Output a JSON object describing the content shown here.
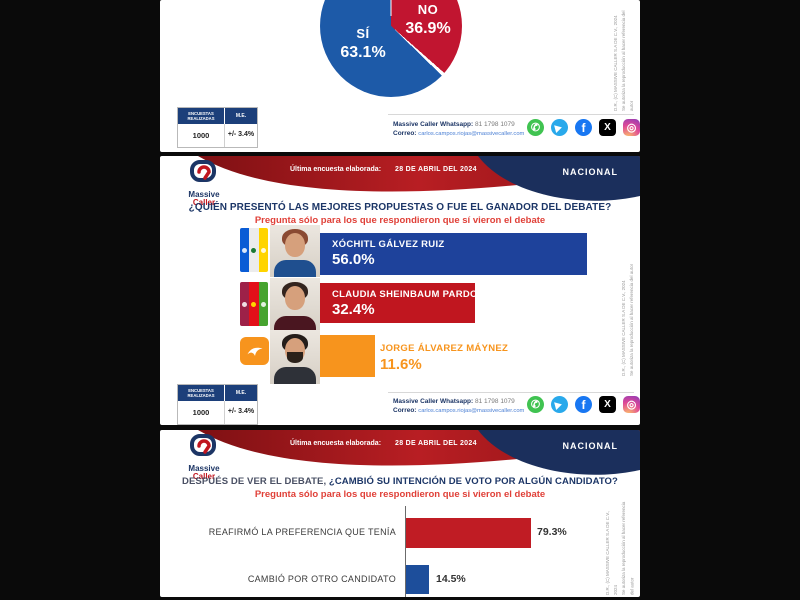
{
  "shared": {
    "brand": {
      "name_line1": "Massive",
      "name_line2": "Caller"
    },
    "banner": {
      "date_label": "Última encuesta elaborada:",
      "date": "28 DE ABRIL DEL 2024",
      "region": "NACIONAL"
    },
    "stats": {
      "col1_header": "ENCUESTAS REALIZADAS",
      "col2_header": "M.E.",
      "col1_value": "1000",
      "col2_value": "+/- 3.4%"
    },
    "contact": {
      "whatsapp_label": "Massive Caller Whatsapp:",
      "whatsapp_number": "81 1798 1079",
      "email_label": "Correo:",
      "email": "carlos.campos.riojas@massivecaller.com"
    },
    "social_icons": [
      "whatsapp-icon",
      "telegram-icon",
      "facebook-icon",
      "x-icon",
      "instagram-icon"
    ],
    "side_note_line1": "D.R., (C) MASSIVE CALLER S.A DE C.V., 2024",
    "side_note_line2": "Se autoriza la reproducción al hacer referencia del autor"
  },
  "slide1": {
    "pie_labels": {
      "si_label": "SÍ",
      "si_pct": "63.1%",
      "no_label": "NO",
      "no_pct": "36.9%"
    }
  },
  "slide2": {
    "question": "¿QUIÉN PRESENTÓ LAS MEJORES PROPUESTAS O FUE EL GANADOR DEL DEBATE?",
    "subtitle": "Pregunta sólo para los que respondieron que sí vieron el debate",
    "rows": [
      {
        "name": "XÓCHITL GÁLVEZ RUIZ",
        "pct": "56.0%",
        "coalition": "PAN-PRI-PRD"
      },
      {
        "name": "CLAUDIA SHEINBAUM PARDO",
        "pct": "32.4%",
        "coalition": "MORENA-PT-PVEM"
      },
      {
        "name": "JORGE ÁLVAREZ MÁYNEZ",
        "pct": "11.6%",
        "coalition": "MC"
      }
    ]
  },
  "slide3": {
    "question_prefix": "DESPUÉS DE VER EL DEBATE, ",
    "question_main": "¿CAMBIÓ SU INTENCIÓN DE VOTO POR ALGÚN CANDIDATO?",
    "subtitle": "Pregunta sólo para los que respondieron que si vieron el debate",
    "rows": [
      {
        "label": "REAFIRMÓ LA PREFERENCIA QUE TENÍA",
        "pct": "79.3%"
      },
      {
        "label": "CAMBIÓ POR OTRO CANDIDATO",
        "pct": "14.5%"
      }
    ]
  },
  "chart_data": [
    {
      "type": "pie",
      "labels": [
        "SÍ",
        "NO"
      ],
      "values": [
        63.1,
        36.9
      ],
      "colors": [
        "#1d5aa8",
        "#c11530"
      ],
      "legend_position": "inside",
      "note": "question cropped out of frame; answers about having watched the debate"
    },
    {
      "type": "bar",
      "orientation": "horizontal",
      "title": "¿QUIÉN PRESENTÓ LAS MEJORES PROPUESTAS O FUE EL GANADOR DEL DEBATE?",
      "subtitle": "Pregunta sólo para los que respondieron que sí vieron el debate",
      "categories": [
        "XÓCHITL GÁLVEZ RUIZ",
        "CLAUDIA SHEINBAUM PARDO",
        "JORGE ÁLVAREZ MÁYNEZ"
      ],
      "values": [
        56.0,
        32.4,
        11.6
      ],
      "colors": [
        "#1e429b",
        "#c0161f",
        "#f7941d"
      ],
      "xlim": [
        0,
        100
      ],
      "grid": false,
      "data_labels": "inside-or-right"
    },
    {
      "type": "bar",
      "orientation": "horizontal",
      "title": "DESPUÉS DE VER EL DEBATE, ¿CAMBIÓ SU INTENCIÓN DE VOTO POR ALGÚN CANDIDATO?",
      "subtitle": "Pregunta sólo para los que respondieron que si vieron el debate",
      "categories": [
        "REAFIRMÓ LA PREFERENCIA QUE TENÍA",
        "CAMBIÓ POR OTRO CANDIDATO"
      ],
      "values": [
        79.3,
        14.5
      ],
      "colors": [
        "#c01c24",
        "#1d4e9b"
      ],
      "xlim": [
        0,
        100
      ],
      "grid": false,
      "data_labels": "right"
    }
  ]
}
